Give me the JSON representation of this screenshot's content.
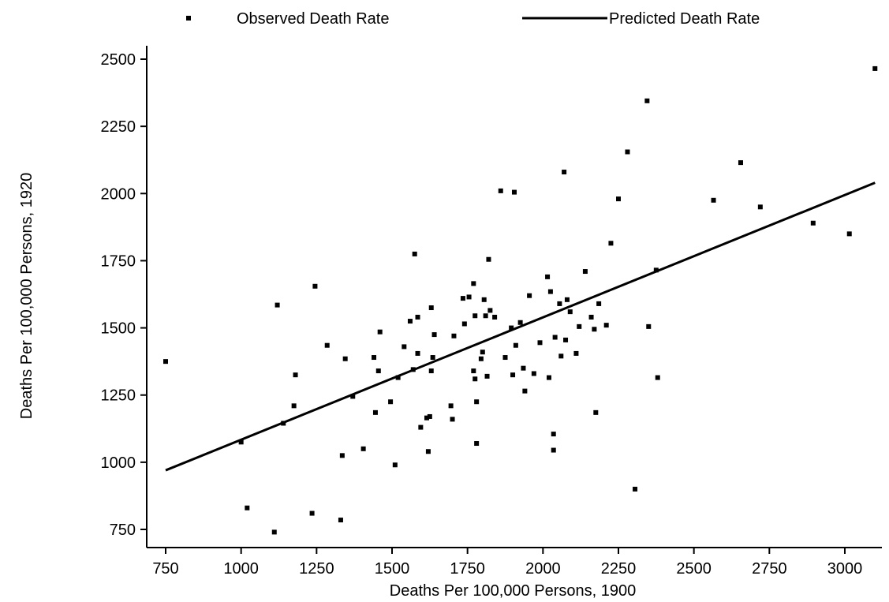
{
  "chart_data": {
    "type": "scatter",
    "title": "",
    "xlabel": "Deaths Per 100,000 Persons, 1900",
    "ylabel": "Deaths Per 100,000 Persons, 1920",
    "xlim": [
      700,
      3100
    ],
    "ylim": [
      720,
      2560
    ],
    "x_ticks": [
      750,
      1000,
      1250,
      1500,
      1750,
      2000,
      2250,
      2500,
      2750,
      3000
    ],
    "y_ticks": [
      750,
      1000,
      1250,
      1500,
      1750,
      2000,
      2250,
      2500
    ],
    "grid": false,
    "legend_position": "top",
    "series": [
      {
        "name": "Observed Death Rate",
        "kind": "points",
        "color": "#000000",
        "points": [
          [
            750,
            1375
          ],
          [
            1000,
            1075
          ],
          [
            1020,
            830
          ],
          [
            1110,
            740
          ],
          [
            1120,
            1585
          ],
          [
            1140,
            1145
          ],
          [
            1175,
            1210
          ],
          [
            1180,
            1325
          ],
          [
            1235,
            810
          ],
          [
            1245,
            1655
          ],
          [
            1285,
            1435
          ],
          [
            1330,
            785
          ],
          [
            1335,
            1025
          ],
          [
            1345,
            1385
          ],
          [
            1370,
            1245
          ],
          [
            1405,
            1050
          ],
          [
            1440,
            1390
          ],
          [
            1445,
            1185
          ],
          [
            1455,
            1340
          ],
          [
            1460,
            1485
          ],
          [
            1495,
            1225
          ],
          [
            1510,
            990
          ],
          [
            1520,
            1315
          ],
          [
            1540,
            1430
          ],
          [
            1560,
            1525
          ],
          [
            1570,
            1345
          ],
          [
            1575,
            1775
          ],
          [
            1585,
            1540
          ],
          [
            1585,
            1405
          ],
          [
            1595,
            1130
          ],
          [
            1615,
            1165
          ],
          [
            1620,
            1040
          ],
          [
            1625,
            1170
          ],
          [
            1630,
            1575
          ],
          [
            1630,
            1340
          ],
          [
            1635,
            1390
          ],
          [
            1640,
            1475
          ],
          [
            1695,
            1210
          ],
          [
            1700,
            1160
          ],
          [
            1705,
            1470
          ],
          [
            1735,
            1610
          ],
          [
            1740,
            1515
          ],
          [
            1755,
            1615
          ],
          [
            1770,
            1340
          ],
          [
            1770,
            1665
          ],
          [
            1775,
            1545
          ],
          [
            1775,
            1310
          ],
          [
            1780,
            1070
          ],
          [
            1780,
            1225
          ],
          [
            1795,
            1385
          ],
          [
            1800,
            1410
          ],
          [
            1805,
            1605
          ],
          [
            1810,
            1545
          ],
          [
            1815,
            1320
          ],
          [
            1820,
            1755
          ],
          [
            1825,
            1565
          ],
          [
            1840,
            1540
          ],
          [
            1860,
            2010
          ],
          [
            1875,
            1390
          ],
          [
            1895,
            1500
          ],
          [
            1900,
            1325
          ],
          [
            1905,
            2005
          ],
          [
            1910,
            1435
          ],
          [
            1925,
            1520
          ],
          [
            1935,
            1350
          ],
          [
            1940,
            1265
          ],
          [
            1955,
            1620
          ],
          [
            1970,
            1330
          ],
          [
            1990,
            1445
          ],
          [
            2015,
            1690
          ],
          [
            2020,
            1315
          ],
          [
            2025,
            1635
          ],
          [
            2035,
            1105
          ],
          [
            2035,
            1045
          ],
          [
            2040,
            1465
          ],
          [
            2055,
            1590
          ],
          [
            2060,
            1395
          ],
          [
            2070,
            2080
          ],
          [
            2075,
            1455
          ],
          [
            2080,
            1605
          ],
          [
            2090,
            1560
          ],
          [
            2110,
            1405
          ],
          [
            2120,
            1505
          ],
          [
            2140,
            1710
          ],
          [
            2160,
            1540
          ],
          [
            2170,
            1495
          ],
          [
            2175,
            1185
          ],
          [
            2185,
            1590
          ],
          [
            2210,
            1510
          ],
          [
            2225,
            1815
          ],
          [
            2250,
            1980
          ],
          [
            2280,
            2155
          ],
          [
            2305,
            900
          ],
          [
            2345,
            2345
          ],
          [
            2350,
            1505
          ],
          [
            2375,
            1715
          ],
          [
            2380,
            1315
          ],
          [
            2565,
            1975
          ],
          [
            2655,
            2115
          ],
          [
            2720,
            1950
          ],
          [
            2895,
            1890
          ],
          [
            3015,
            1850
          ],
          [
            3100,
            2465
          ]
        ]
      },
      {
        "name": "Predicted Death Rate",
        "kind": "line",
        "color": "#000000",
        "points": [
          [
            750,
            970
          ],
          [
            3100,
            2040
          ]
        ]
      }
    ]
  }
}
